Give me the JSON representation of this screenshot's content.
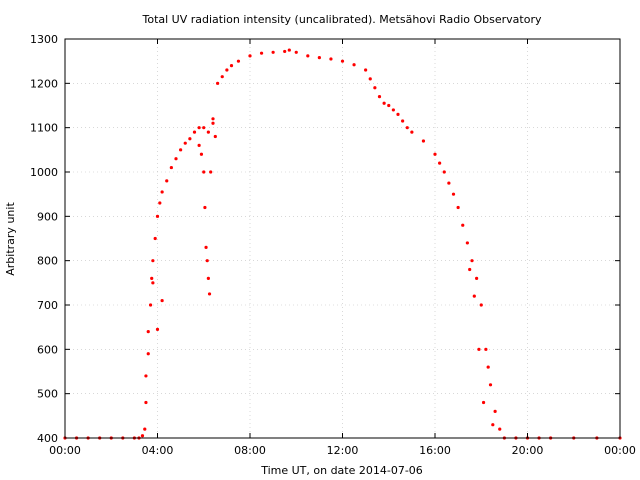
{
  "chart_data": {
    "type": "scatter",
    "title": "Total UV radiation intensity (uncalibrated). Metsähovi Radio Observatory",
    "xlabel": "Time UT, on date 2014-07-06",
    "ylabel": "Arbitrary unit",
    "xlim": [
      0,
      24
    ],
    "ylim": [
      400,
      1300
    ],
    "x_ticks": [
      0,
      4,
      8,
      12,
      16,
      20,
      24
    ],
    "x_tick_labels": [
      "00:00",
      "04:00",
      "08:00",
      "12:00",
      "16:00",
      "20:00",
      "00:00"
    ],
    "y_ticks": [
      400,
      500,
      600,
      700,
      800,
      900,
      1000,
      1100,
      1200,
      1300
    ],
    "y_tick_labels": [
      "400",
      "500",
      "600",
      "700",
      "800",
      "900",
      "1000",
      "1100",
      "1200",
      "1300"
    ],
    "grid": true,
    "series_color": "#ff0000",
    "series": [
      {
        "x": [
          0,
          0.5,
          1,
          1.5,
          2,
          2.5,
          3,
          3.2,
          3.35,
          3.45,
          3.5,
          3.6,
          3.7,
          3.75,
          3.8,
          3.9,
          4.0,
          4.1,
          4.2,
          4.4,
          4.6,
          4.8,
          5.0,
          5.2,
          5.4,
          5.6,
          5.8,
          6.0,
          6.2,
          6.4,
          6.6,
          6.8,
          7.0,
          7.2,
          7.5,
          8.0,
          8.5,
          9.0,
          9.5,
          9.7,
          10.0,
          10.5,
          11.0,
          11.5,
          12.0,
          12.5,
          13.0,
          13.2,
          13.4,
          13.6,
          13.8,
          14.0,
          14.2,
          14.4,
          14.6,
          14.8,
          15.0,
          15.5,
          16.0,
          16.2,
          16.4,
          16.6,
          16.8,
          17.0,
          17.2,
          17.4,
          17.6,
          17.8,
          18.0,
          18.2,
          18.4,
          18.6,
          18.8,
          19.0,
          19.5,
          20.0,
          20.5,
          21.0,
          22.0,
          23.0,
          24.0
        ],
        "y": [
          400,
          400,
          400,
          400,
          400,
          400,
          400,
          400,
          405,
          420,
          480,
          590,
          700,
          760,
          800,
          850,
          900,
          930,
          955,
          980,
          1010,
          1030,
          1050,
          1065,
          1075,
          1090,
          1100,
          1100,
          1090,
          1110,
          1200,
          1215,
          1230,
          1240,
          1250,
          1262,
          1268,
          1270,
          1272,
          1275,
          1270,
          1262,
          1258,
          1255,
          1250,
          1242,
          1230,
          1210,
          1190,
          1170,
          1155,
          1150,
          1140,
          1130,
          1115,
          1100,
          1090,
          1070,
          1040,
          1020,
          1000,
          975,
          950,
          920,
          880,
          840,
          800,
          760,
          700,
          600,
          520,
          460,
          420,
          400,
          400,
          400,
          400,
          400,
          400,
          400,
          400
        ]
      },
      {
        "x": [
          3.5,
          3.6,
          3.8,
          4.0,
          4.2,
          5.8,
          5.9,
          6.0,
          6.05,
          6.1,
          6.15,
          6.2,
          6.25,
          6.3,
          6.4,
          6.5,
          17.5,
          17.7,
          17.9,
          18.1,
          18.3,
          18.5
        ],
        "y": [
          540,
          640,
          750,
          645,
          710,
          1060,
          1040,
          1000,
          920,
          830,
          800,
          760,
          725,
          1000,
          1120,
          1080,
          780,
          720,
          600,
          480,
          560,
          430
        ]
      }
    ]
  }
}
